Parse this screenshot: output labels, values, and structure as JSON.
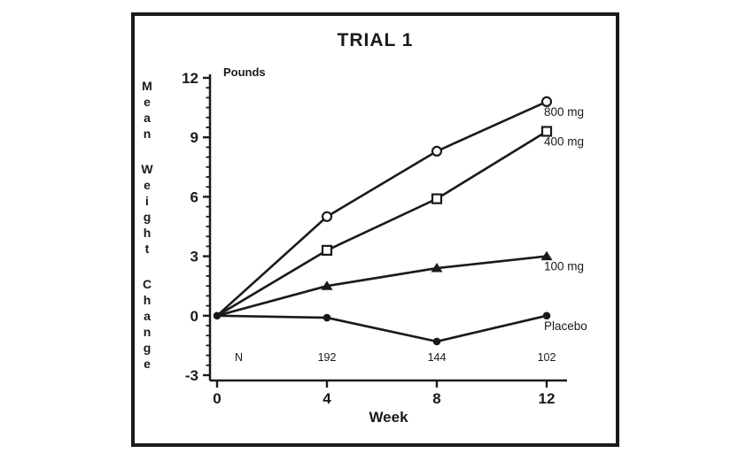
{
  "window": {
    "background": "#ffffff",
    "frame_border_color": "#1a1a1a"
  },
  "chart_data": {
    "type": "line",
    "title": "TRIAL 1",
    "xlabel": "Week",
    "ylabel": "Mean Weight Change",
    "y_unit_label": "Pounds",
    "x": [
      0,
      4,
      8,
      12
    ],
    "xticks": [
      0,
      4,
      8,
      12
    ],
    "yticks": [
      -3,
      0,
      3,
      6,
      9,
      12
    ],
    "xlim": [
      0,
      12
    ],
    "ylim": [
      -3,
      12
    ],
    "minor_tick_step": 0.5,
    "grid": false,
    "legend_position": "end-of-line-labels",
    "series": [
      {
        "name": "800 mg",
        "marker": "open-circle",
        "values": [
          0,
          5.0,
          8.3,
          10.8
        ]
      },
      {
        "name": "400 mg",
        "marker": "open-square",
        "values": [
          0,
          3.3,
          5.9,
          9.3
        ]
      },
      {
        "name": "100 mg",
        "marker": "filled-triangle",
        "values": [
          0,
          1.5,
          2.4,
          3.0
        ]
      },
      {
        "name": "Placebo",
        "marker": "filled-circle",
        "values": [
          0,
          -0.1,
          -1.3,
          0
        ]
      }
    ],
    "n_row": {
      "label": "N",
      "weeks": [
        4,
        8,
        12
      ],
      "values": [
        "192",
        "144",
        "102"
      ]
    },
    "colors": {
      "ink": "#1a1a1a",
      "background": "#ffffff"
    }
  }
}
